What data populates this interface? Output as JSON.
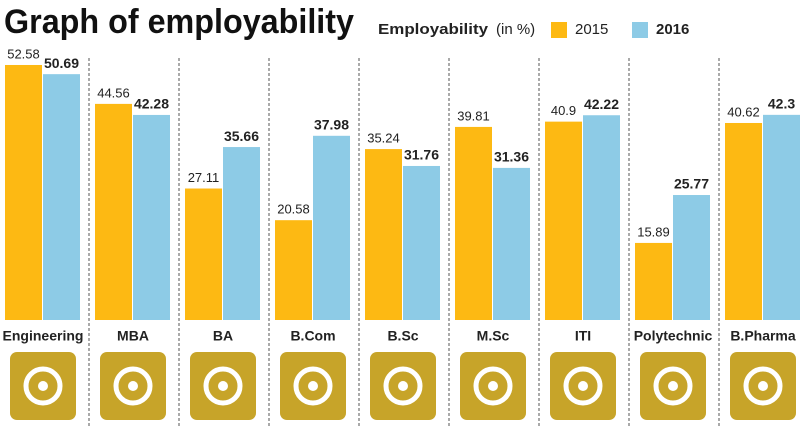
{
  "chart_data": {
    "type": "bar",
    "title": "Graph of employability",
    "legend_title": "Employability",
    "legend_unit": "(in %)",
    "categories": [
      "Engineering",
      "MBA",
      "BA",
      "B.Com",
      "B.Sc",
      "M.Sc",
      "ITI",
      "Polytechnic",
      "B.Pharma"
    ],
    "series": [
      {
        "name": "2015",
        "color": "#fdb913",
        "values": [
          52.58,
          44.56,
          27.11,
          20.58,
          35.24,
          39.81,
          40.9,
          15.89,
          40.62
        ]
      },
      {
        "name": "2016",
        "color": "#8dcbe6",
        "values": [
          50.69,
          42.28,
          35.66,
          37.98,
          31.76,
          31.36,
          42.22,
          25.77,
          42.3
        ]
      }
    ]
  }
}
